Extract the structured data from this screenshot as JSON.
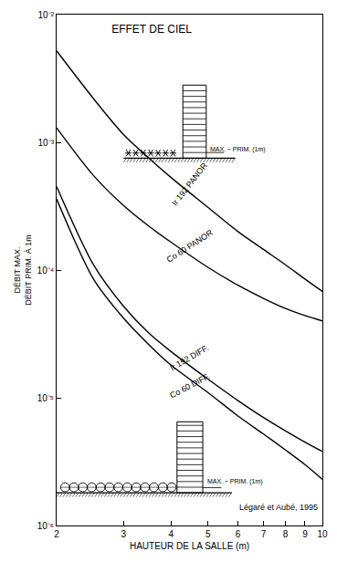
{
  "chart_data": {
    "type": "line",
    "title": "EFFET DE CIEL",
    "xlabel": "HAUTEUR DE LA SALLE (m)",
    "ylabel": [
      "DÉBIT MAX.",
      "DÉBIT PRIM. À 1m"
    ],
    "log": true,
    "grid": false,
    "x": [
      2,
      2.5,
      3,
      3.5,
      4,
      5,
      6,
      7,
      8,
      9,
      10
    ],
    "series": [
      {
        "name": "Ir 192 PANOR",
        "color": "#000000",
        "values": [
          0.0052,
          0.0022,
          0.00115,
          0.00075,
          0.00053,
          0.00031,
          0.0002,
          0.000145,
          0.00011,
          8.5e-05,
          6.8e-05
        ]
      },
      {
        "name": "Co 60 PANOR",
        "color": "#000000",
        "values": [
          0.0013,
          0.00055,
          0.00032,
          0.00022,
          0.000165,
          0.000105,
          7.6e-05,
          6e-05,
          5e-05,
          4.4e-05,
          4e-05
        ]
      },
      {
        "name": "Ir 192 DIFF.",
        "color": "#000000",
        "values": [
          0.00045,
          0.00011,
          5.2e-05,
          3.2e-05,
          2.3e-05,
          1.4e-05,
          9.5e-06,
          7e-06,
          5.5e-06,
          4.5e-06,
          3.8e-06
        ]
      },
      {
        "name": "Co 60 DIFF.",
        "color": "#000000",
        "values": [
          0.00036,
          8.5e-05,
          4.2e-05,
          2.6e-05,
          1.8e-05,
          1.1e-05,
          7.2e-06,
          5.2e-06,
          3.9e-06,
          3e-06,
          2.3e-06
        ]
      }
    ],
    "xlim": [
      2,
      10
    ],
    "ylim": [
      1e-06,
      0.01
    ],
    "xticks": [
      2,
      3,
      4,
      5,
      6,
      7,
      8,
      9,
      10
    ],
    "yticks": [
      {
        "value": 1e-06,
        "label": "10⁻⁶"
      },
      {
        "value": 1e-05,
        "label": "10⁻⁵"
      },
      {
        "value": 0.0001,
        "label": "10⁻⁴"
      },
      {
        "value": 0.001,
        "label": "10⁻³"
      },
      {
        "value": 0.01,
        "label": "10⁻²"
      }
    ],
    "annotations": [
      "MAX. ÷ PRIM. (1m)",
      "MAX. ÷ PRIM. (1m)",
      "Légaré et Aubé, 1995"
    ]
  }
}
